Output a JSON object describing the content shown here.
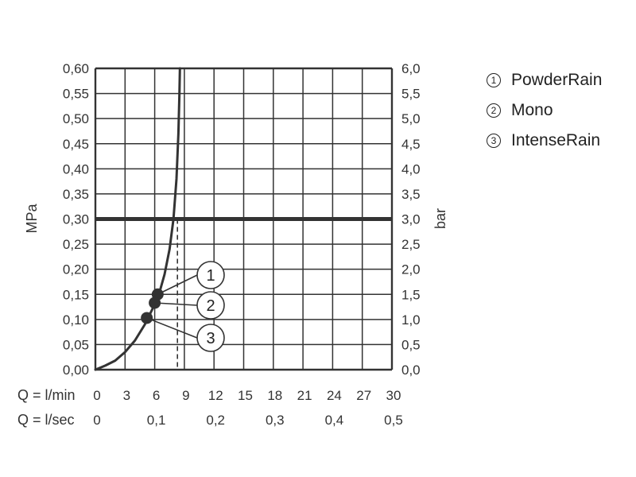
{
  "chart_data": {
    "type": "line",
    "y_left": {
      "label": "MPa",
      "range": [
        0,
        0.6
      ],
      "ticks": [
        "0,00",
        "0,05",
        "0,10",
        "0,15",
        "0,20",
        "0,25",
        "0,30",
        "0,35",
        "0,40",
        "0,45",
        "0,50",
        "0,55",
        "0,60"
      ]
    },
    "y_right": {
      "label": "bar",
      "range": [
        0,
        6
      ],
      "ticks": [
        "0,0",
        "0,5",
        "1,0",
        "1,5",
        "2,0",
        "2,5",
        "3,0",
        "3,5",
        "4,0",
        "4,5",
        "5,0",
        "5,5",
        "6,0"
      ]
    },
    "x_primary": {
      "label": "Q = l/min",
      "range": [
        0,
        30
      ],
      "ticks": [
        "0",
        "3",
        "6",
        "9",
        "12",
        "15",
        "18",
        "21",
        "24",
        "27",
        "30"
      ]
    },
    "x_secondary": {
      "label": "Q = l/sec",
      "ticks": [
        {
          "flow": 0,
          "text": "0"
        },
        {
          "flow": 6,
          "text": "0,1"
        },
        {
          "flow": 12,
          "text": "0,2"
        },
        {
          "flow": 18,
          "text": "0,3"
        },
        {
          "flow": 24,
          "text": "0,4"
        },
        {
          "flow": 30,
          "text": "0,5"
        }
      ]
    },
    "reference_pressure": 0.3,
    "reference_flow": 8.3,
    "curve": [
      {
        "x": 0,
        "y": 0
      },
      {
        "x": 1,
        "y": 0.008
      },
      {
        "x": 2,
        "y": 0.018
      },
      {
        "x": 3,
        "y": 0.035
      },
      {
        "x": 4,
        "y": 0.058
      },
      {
        "x": 5,
        "y": 0.09
      },
      {
        "x": 5.5,
        "y": 0.11
      },
      {
        "x": 6,
        "y": 0.13
      },
      {
        "x": 6.5,
        "y": 0.155
      },
      {
        "x": 7,
        "y": 0.19
      },
      {
        "x": 7.5,
        "y": 0.24
      },
      {
        "x": 7.9,
        "y": 0.3
      },
      {
        "x": 8.2,
        "y": 0.38
      },
      {
        "x": 8.4,
        "y": 0.47
      },
      {
        "x": 8.5,
        "y": 0.55
      },
      {
        "x": 8.55,
        "y": 0.6
      }
    ],
    "points": [
      {
        "id": "1",
        "x": 6.3,
        "y": 0.15
      },
      {
        "id": "2",
        "x": 6.0,
        "y": 0.133
      },
      {
        "id": "3",
        "x": 5.2,
        "y": 0.103
      }
    ],
    "grid": true,
    "legend_position": "right"
  },
  "legend": [
    {
      "num": "1",
      "label": "PowderRain"
    },
    {
      "num": "2",
      "label": "Mono"
    },
    {
      "num": "3",
      "label": "IntenseRain"
    }
  ]
}
